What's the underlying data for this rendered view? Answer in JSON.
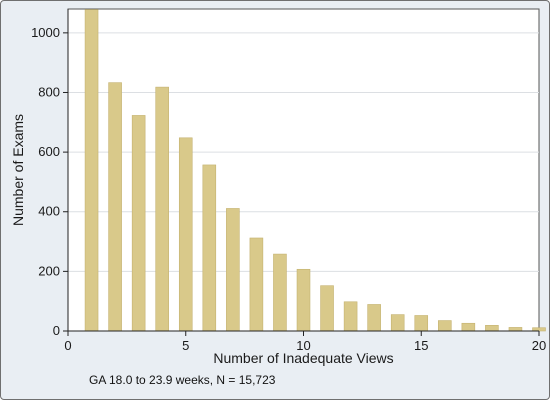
{
  "chart_data": {
    "type": "bar",
    "x": [
      1,
      2,
      3,
      4,
      5,
      6,
      7,
      8,
      9,
      10,
      11,
      12,
      13,
      14,
      15,
      16,
      17,
      18,
      19,
      20
    ],
    "values": [
      1078,
      833,
      723,
      818,
      648,
      557,
      411,
      312,
      258,
      207,
      152,
      98,
      89,
      55,
      52,
      35,
      26,
      19,
      12,
      11
    ],
    "xlabel": "Number of Inadequate Views",
    "ylabel": "Number of Exams",
    "xlim": [
      0,
      20
    ],
    "ylim": [
      0,
      1080
    ],
    "xticks": [
      0,
      5,
      10,
      15,
      20
    ],
    "yticks": [
      0,
      200,
      400,
      600,
      800,
      1000
    ],
    "grid": "horizontal",
    "bar_color": "#d9c98a",
    "bar_edge_color": "#c4b270",
    "plot_background": "#ffffff",
    "outer_background": "#e9eef3",
    "grid_color": "#dcdfe3"
  },
  "footnote": "GA 18.0 to 23.9 weeks, N = 15,723"
}
